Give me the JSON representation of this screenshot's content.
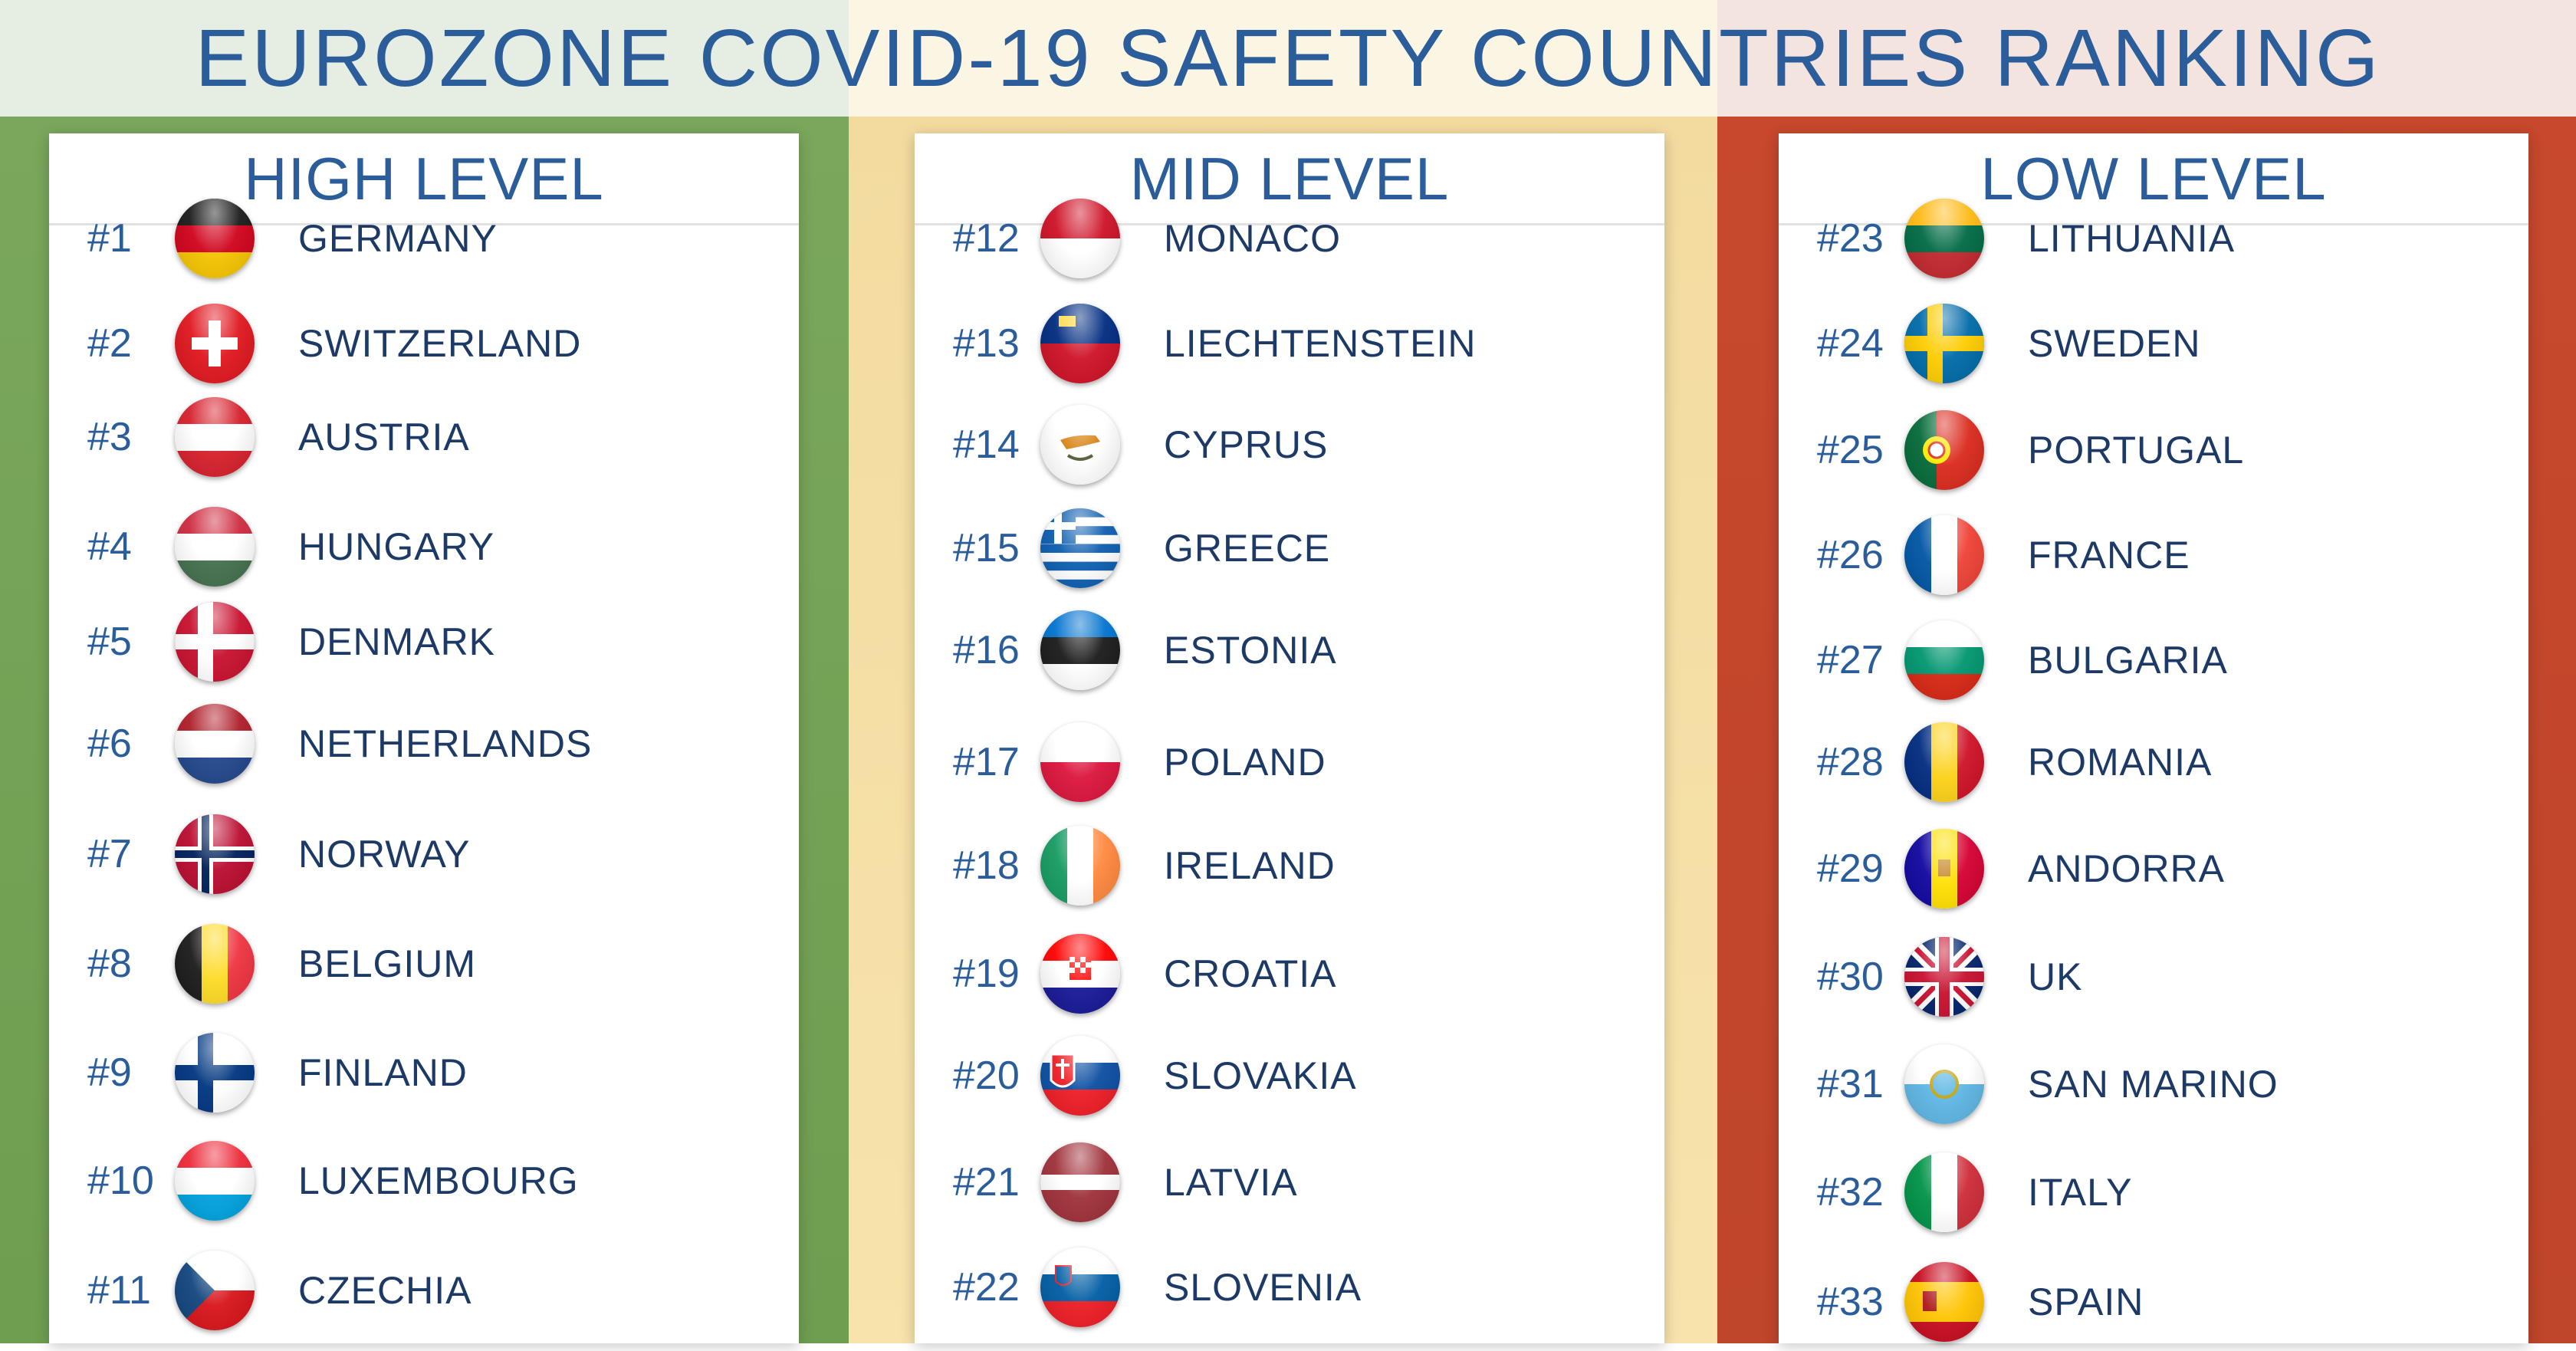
{
  "title": "EUROZONE COVID-19 SAFETY COUNTRIES RANKING",
  "colors": {
    "title": "#2a5d9a",
    "high": "#77a55a",
    "mid": "#f5e0a6",
    "low": "#c5472c"
  },
  "sections": {
    "high": {
      "label": "HIGH LEVEL",
      "items": [
        {
          "rank": "#1",
          "name": "GERMANY",
          "flag": "germany-flag-icon"
        },
        {
          "rank": "#2",
          "name": "SWITZERLAND",
          "flag": "switzerland-flag-icon"
        },
        {
          "rank": "#3",
          "name": "AUSTRIA",
          "flag": "austria-flag-icon"
        },
        {
          "rank": "#4",
          "name": "HUNGARY",
          "flag": "hungary-flag-icon"
        },
        {
          "rank": "#5",
          "name": "DENMARK",
          "flag": "denmark-flag-icon"
        },
        {
          "rank": "#6",
          "name": "NETHERLANDS",
          "flag": "netherlands-flag-icon"
        },
        {
          "rank": "#7",
          "name": "NORWAY",
          "flag": "norway-flag-icon"
        },
        {
          "rank": "#8",
          "name": "BELGIUM",
          "flag": "belgium-flag-icon"
        },
        {
          "rank": "#9",
          "name": "FINLAND",
          "flag": "finland-flag-icon"
        },
        {
          "rank": "#10",
          "name": "LUXEMBOURG",
          "flag": "luxembourg-flag-icon"
        },
        {
          "rank": "#11",
          "name": "CZECHIA",
          "flag": "czechia-flag-icon"
        }
      ]
    },
    "mid": {
      "label": "MID LEVEL",
      "items": [
        {
          "rank": "#12",
          "name": "MONACO",
          "flag": "monaco-flag-icon"
        },
        {
          "rank": "#13",
          "name": "LIECHTENSTEIN",
          "flag": "liechtenstein-flag-icon"
        },
        {
          "rank": "#14",
          "name": "CYPRUS",
          "flag": "cyprus-flag-icon"
        },
        {
          "rank": "#15",
          "name": "GREECE",
          "flag": "greece-flag-icon"
        },
        {
          "rank": "#16",
          "name": "ESTONIA",
          "flag": "estonia-flag-icon"
        },
        {
          "rank": "#17",
          "name": "POLAND",
          "flag": "poland-flag-icon"
        },
        {
          "rank": "#18",
          "name": "IRELAND",
          "flag": "ireland-flag-icon"
        },
        {
          "rank": "#19",
          "name": "CROATIA",
          "flag": "croatia-flag-icon"
        },
        {
          "rank": "#20",
          "name": "SLOVAKIA",
          "flag": "slovakia-flag-icon"
        },
        {
          "rank": "#21",
          "name": "LATVIA",
          "flag": "latvia-flag-icon"
        },
        {
          "rank": "#22",
          "name": "SLOVENIA",
          "flag": "slovenia-flag-icon"
        }
      ]
    },
    "low": {
      "label": "LOW LEVEL",
      "items": [
        {
          "rank": "#23",
          "name": "LITHUANIA",
          "flag": "lithuania-flag-icon"
        },
        {
          "rank": "#24",
          "name": "SWEDEN",
          "flag": "sweden-flag-icon"
        },
        {
          "rank": "#25",
          "name": "PORTUGAL",
          "flag": "portugal-flag-icon"
        },
        {
          "rank": "#26",
          "name": "FRANCE",
          "flag": "france-flag-icon"
        },
        {
          "rank": "#27",
          "name": "BULGARIA",
          "flag": "bulgaria-flag-icon"
        },
        {
          "rank": "#28",
          "name": "ROMANIA",
          "flag": "romania-flag-icon"
        },
        {
          "rank": "#29",
          "name": "ANDORRA",
          "flag": "andorra-flag-icon"
        },
        {
          "rank": "#30",
          "name": "UK",
          "flag": "uk-flag-icon"
        },
        {
          "rank": "#31",
          "name": "SAN MARINO",
          "flag": "san-marino-flag-icon"
        },
        {
          "rank": "#32",
          "name": "ITALY",
          "flag": "italy-flag-icon"
        },
        {
          "rank": "#33",
          "name": "SPAIN",
          "flag": "spain-flag-icon"
        }
      ]
    }
  }
}
